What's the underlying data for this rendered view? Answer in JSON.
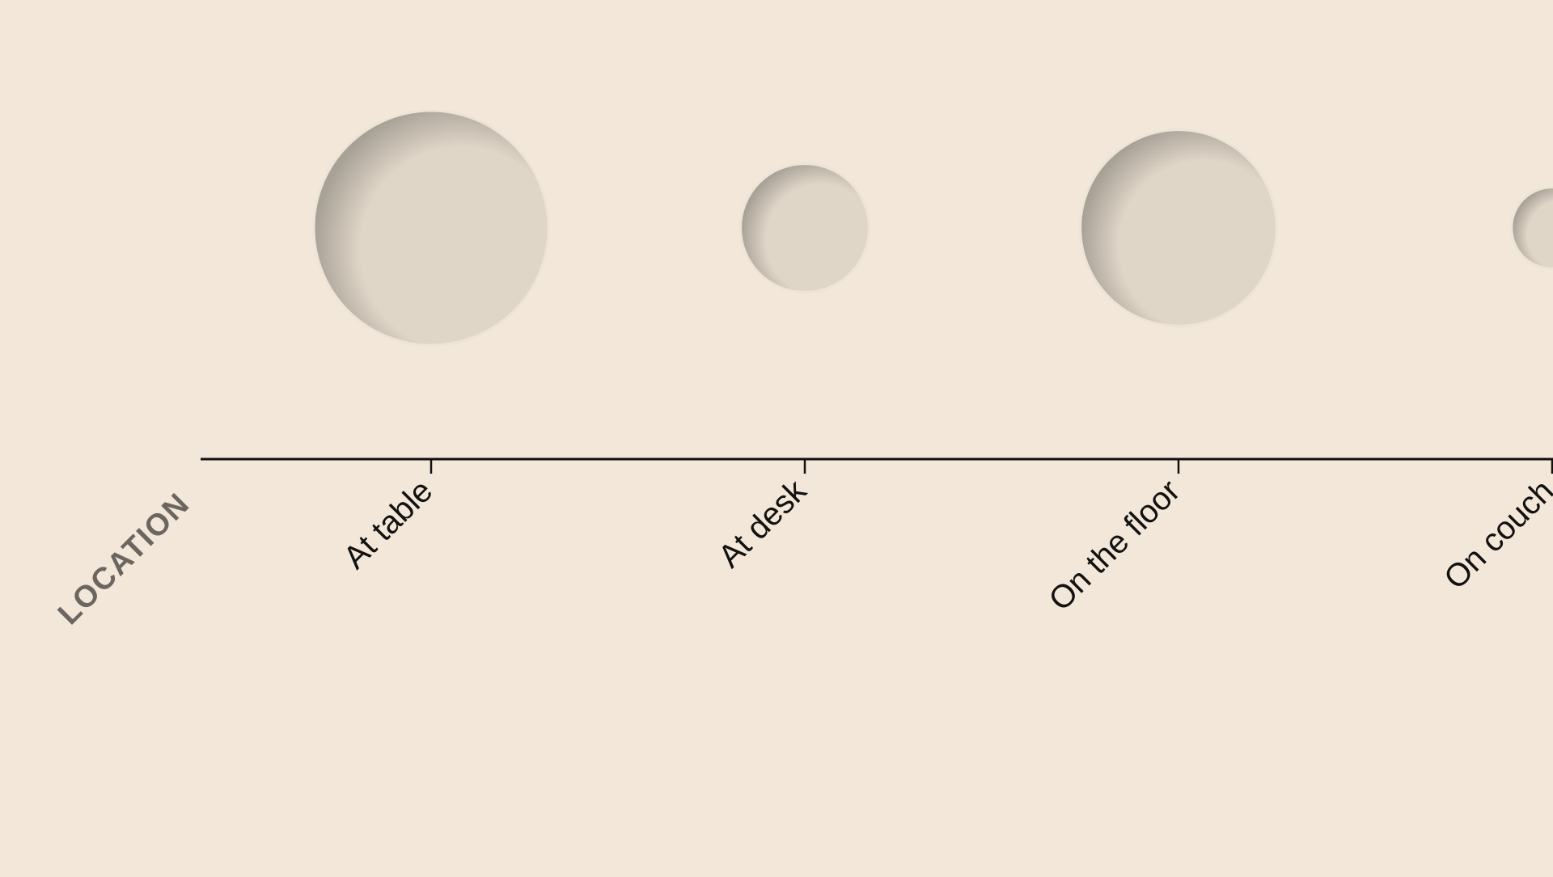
{
  "colors": {
    "background": "#f2e7d8",
    "bubble_fill": "#e0d6c8",
    "bubble_shade": "#a8a196",
    "axis": "#111111",
    "axis_title": "#6b6660"
  },
  "chart_data": {
    "type": "scatter",
    "xlabel": "LOCATION",
    "categories": [
      "At table",
      "At desk",
      "On the floor",
      "On couch"
    ],
    "sizes": [
      100,
      30,
      70,
      12
    ],
    "grid": false,
    "legend": "none"
  }
}
